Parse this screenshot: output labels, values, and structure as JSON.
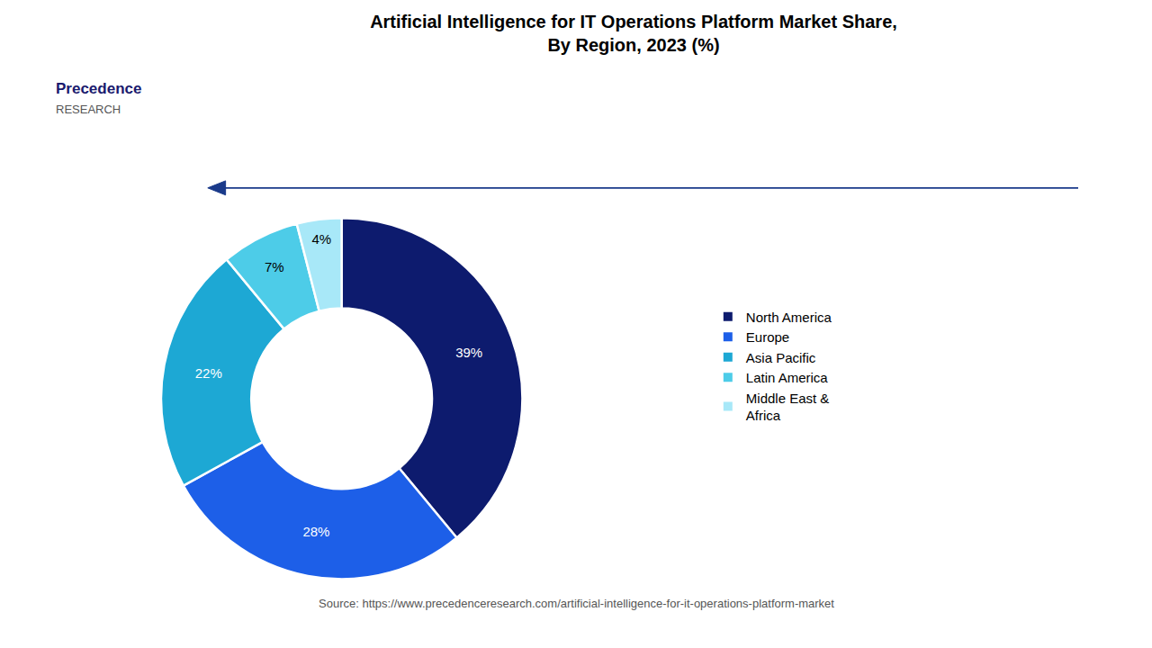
{
  "chart_data": {
    "type": "donut",
    "title": "Artificial Intelligence for IT Operations Platform Market Share,\nBy Region, 2023 (%)",
    "categories": [
      "North America",
      "Europe",
      "Asia Pacific",
      "Latin America",
      "Middle East &\nAfrica"
    ],
    "values": [
      39,
      28,
      22,
      7,
      4
    ],
    "value_labels": [
      "39%",
      "28%",
      "22%",
      "7%",
      "4%"
    ],
    "colors": [
      "#0d1b6e",
      "#1d5fe8",
      "#1da8d4",
      "#4dcce8",
      "#a8e8f8"
    ],
    "data_labels": true,
    "legend": "right",
    "annotations": [
      "Precedence",
      "RESEARCH",
      "Source: https://www.precedenceresearch.com/artificial-intelligence-for-it-operations-platform-market"
    ]
  }
}
